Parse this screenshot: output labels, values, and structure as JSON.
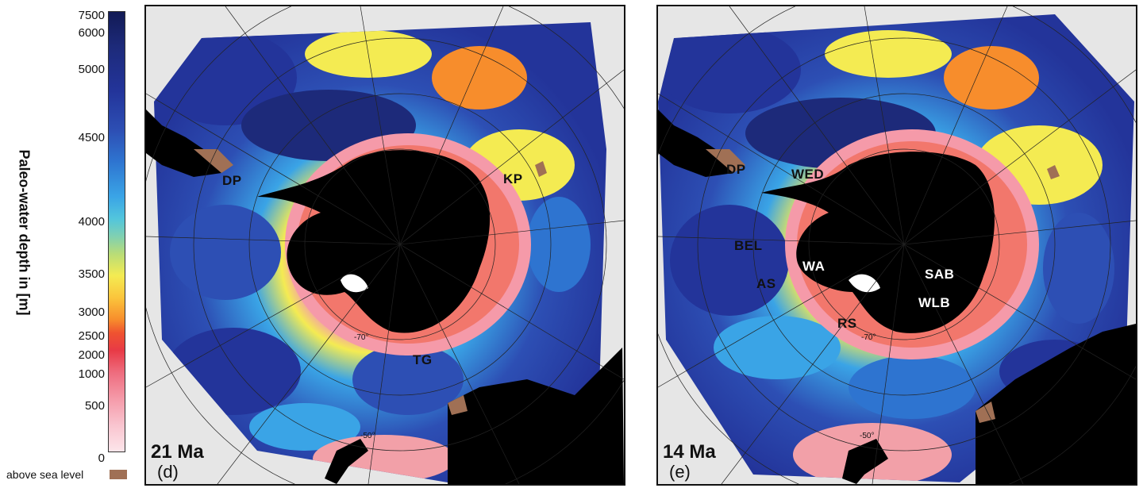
{
  "legend": {
    "title": "Paleo-water depth in [m]",
    "ticks": [
      "7500",
      "6000",
      "5000",
      "4500",
      "4000",
      "3500",
      "3000",
      "2500",
      "2000",
      "1000",
      "500",
      "0"
    ],
    "above_sea_level": "above sea level",
    "colors": {
      "deep": "#1d2a7a",
      "mid": "#3aa4e6",
      "shallow_mid": "#f4eb52",
      "shelf": "#ef5330",
      "shallow": "#f9c4cf",
      "land_exposed": "#a07055",
      "ice_continent": "#000000",
      "no_data": "#e6e6e6"
    }
  },
  "panels": [
    {
      "age": "21 Ma",
      "letter": "(d)",
      "lat_label": "-70°",
      "lat_label_2": "-50°",
      "labels": [
        {
          "id": "dp",
          "text": "DP",
          "color": "dark"
        },
        {
          "id": "kp",
          "text": "KP",
          "color": "dark"
        },
        {
          "id": "tg",
          "text": "TG",
          "color": "dark"
        }
      ]
    },
    {
      "age": "14 Ma",
      "letter": "(e)",
      "lat_label": "-70°",
      "lat_label_2": "-50°",
      "labels": [
        {
          "id": "dp",
          "text": "DP",
          "color": "dark"
        },
        {
          "id": "wed",
          "text": "WED",
          "color": "dark"
        },
        {
          "id": "bel",
          "text": "BEL",
          "color": "dark"
        },
        {
          "id": "wa",
          "text": "WA",
          "color": "white"
        },
        {
          "id": "as",
          "text": "AS",
          "color": "dark"
        },
        {
          "id": "sab",
          "text": "SAB",
          "color": "white"
        },
        {
          "id": "wlb",
          "text": "WLB",
          "color": "white"
        },
        {
          "id": "rs",
          "text": "RS",
          "color": "dark"
        }
      ]
    }
  ]
}
